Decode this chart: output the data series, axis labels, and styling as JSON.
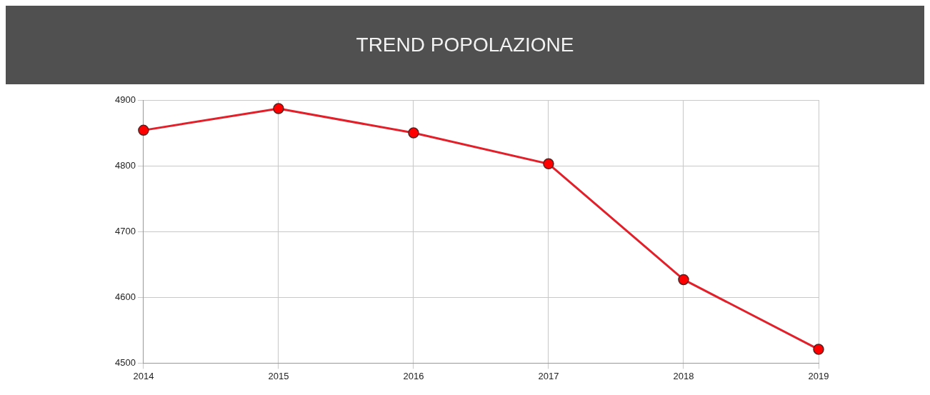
{
  "chart_data": {
    "type": "line",
    "title": "TREND POPOLAZIONE",
    "categories": [
      "2014",
      "2015",
      "2016",
      "2017",
      "2018",
      "2019"
    ],
    "series": [
      {
        "color": "#e3202a",
        "values": [
          4854,
          4887,
          4850,
          4803,
          4627,
          4521
        ]
      }
    ],
    "ylim": [
      4500,
      4900
    ],
    "yticks": [
      4500,
      4600,
      4700,
      4800,
      4900
    ],
    "grid": true,
    "legend": false,
    "marker": "circle",
    "line_style": "solid"
  }
}
